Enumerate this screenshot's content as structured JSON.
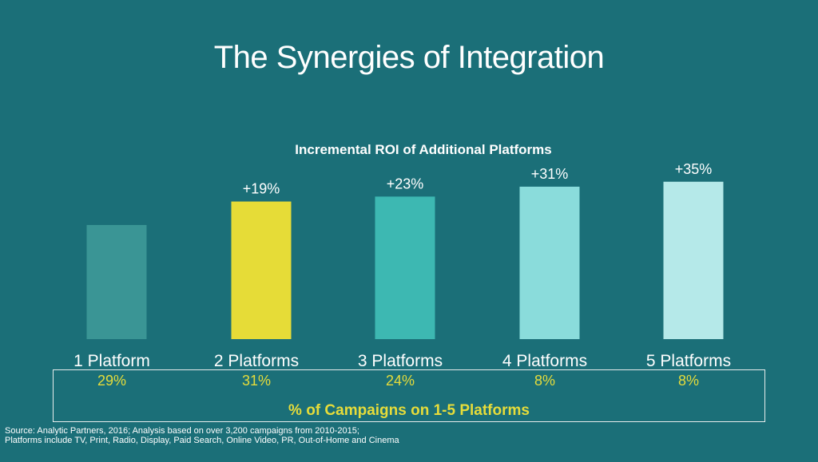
{
  "slide": {
    "title": "The Synergies of Integration"
  },
  "chart_data": {
    "type": "bar",
    "title": "Incremental ROI of Additional Platforms",
    "categories": [
      "1 Platform",
      "2 Platforms",
      "3 Platforms",
      "4 Platforms",
      "5 Platforms"
    ],
    "values": [
      0,
      19,
      23,
      31,
      35
    ],
    "value_labels": [
      "",
      "+19%",
      "+23%",
      "+31%",
      "+35%"
    ],
    "colors": [
      "#3a9595",
      "#e6dc37",
      "#3db8b2",
      "#8adcdb",
      "#b5e9e9"
    ],
    "campaign_share": [
      "29%",
      "31%",
      "24%",
      "8%",
      "8%"
    ],
    "campaign_share_caption": "% of Campaigns on 1-5 Platforms",
    "xlabel": "",
    "ylabel": "",
    "grid": false
  },
  "source": {
    "line1": "Source: Analytic Partners, 2016; Analysis based on over 3,200 campaigns from 2010-2015;",
    "line2": "Platforms include TV, Print, Radio, Display, Paid Search, Online Video, PR, Out-of-Home and Cinema"
  }
}
